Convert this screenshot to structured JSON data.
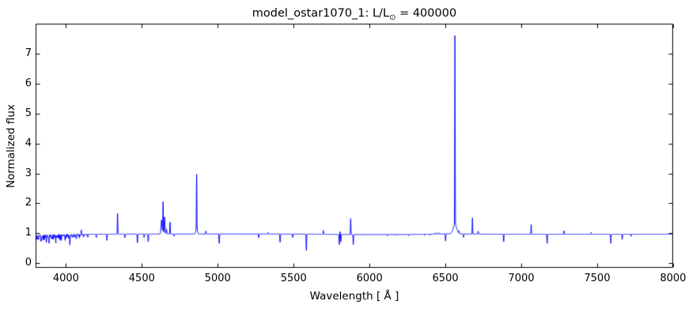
{
  "figure": {
    "title_prefix": "model_ostar1070_1: L/L",
    "title_sub": "⊙",
    "title_suffix": " = 400000",
    "background": "#ffffff",
    "axes_color": "#000000"
  },
  "chart_data": {
    "type": "line",
    "title": "model_ostar1070_1: L/L⊙ = 400000",
    "xlabel": "Wavelength [ Å ]",
    "ylabel": "Normalized flux",
    "xlim": [
      3800,
      8000
    ],
    "ylim": [
      -0.15,
      8.0
    ],
    "xticks": [
      4000,
      4500,
      5000,
      5500,
      6000,
      6500,
      7000,
      7500,
      8000
    ],
    "yticks": [
      0,
      1,
      2,
      3,
      4,
      5,
      6,
      7
    ],
    "grid": false,
    "legend": null,
    "series_color": "#0000ff",
    "continuum_level": 1.0,
    "baseline_points": [
      [
        3800,
        0.93
      ],
      [
        3900,
        0.945
      ],
      [
        3990,
        0.955
      ],
      [
        4120,
        0.97
      ],
      [
        4400,
        0.975
      ],
      [
        5000,
        0.98
      ],
      [
        5600,
        0.975
      ],
      [
        5900,
        0.96
      ],
      [
        6300,
        0.965
      ],
      [
        6520,
        0.985
      ],
      [
        6700,
        0.975
      ],
      [
        7200,
        0.97
      ],
      [
        8000,
        0.97
      ]
    ],
    "noise_region": {
      "range": [
        3800,
        4160
      ],
      "amplitude": 0.12
    },
    "emission_lines": [
      {
        "wavelength": 4101,
        "peak_flux": 1.12,
        "width": 3.0
      },
      {
        "wavelength": 4340,
        "peak_flux": 1.68,
        "width": 3.5
      },
      {
        "wavelength": 4630,
        "peak_flux": 1.45,
        "width": 8.0
      },
      {
        "wavelength": 4640,
        "peak_flux": 2.05,
        "width": 3.5
      },
      {
        "wavelength": 4650,
        "peak_flux": 1.55,
        "width": 6.0
      },
      {
        "wavelength": 4662,
        "peak_flux": 1.15,
        "width": 5.0
      },
      {
        "wavelength": 4686,
        "peak_flux": 1.38,
        "width": 3.5
      },
      {
        "wavelength": 4861,
        "peak_flux": 2.82,
        "width": 3.5
      },
      {
        "wavelength": 4861,
        "peak_flux": 1.15,
        "width": 12.0
      },
      {
        "wavelength": 4922,
        "peak_flux": 1.08,
        "width": 3.0
      },
      {
        "wavelength": 5330,
        "peak_flux": 1.03,
        "width": 4.0
      },
      {
        "wavelength": 5696,
        "peak_flux": 1.1,
        "width": 4.0
      },
      {
        "wavelength": 5806,
        "peak_flux": 1.06,
        "width": 3.0
      },
      {
        "wavelength": 5876,
        "peak_flux": 1.5,
        "width": 3.5
      },
      {
        "wavelength": 6435,
        "peak_flux": 1.02,
        "width": 4.0
      },
      {
        "wavelength": 6455,
        "peak_flux": 1.02,
        "width": 4.0
      },
      {
        "wavelength": 6563,
        "peak_flux": 7.3,
        "width": 3.2
      },
      {
        "wavelength": 6563,
        "peak_flux": 1.3,
        "width": 26.0
      },
      {
        "wavelength": 6590,
        "peak_flux": 1.08,
        "width": 4.0
      },
      {
        "wavelength": 6678,
        "peak_flux": 1.53,
        "width": 3.2
      },
      {
        "wavelength": 6716,
        "peak_flux": 1.07,
        "width": 5.0
      },
      {
        "wavelength": 7065,
        "peak_flux": 1.3,
        "width": 3.5
      },
      {
        "wavelength": 7281,
        "peak_flux": 1.09,
        "width": 3.5
      },
      {
        "wavelength": 7460,
        "peak_flux": 1.03,
        "width": 4.0
      }
    ],
    "absorption_lines": [
      {
        "wavelength": 3819,
        "min_flux": 0.8,
        "width": 3.0
      },
      {
        "wavelength": 3835,
        "min_flux": 0.76,
        "width": 3.0
      },
      {
        "wavelength": 3856,
        "min_flux": 0.88,
        "width": 3.0
      },
      {
        "wavelength": 3871,
        "min_flux": 0.84,
        "width": 3.0
      },
      {
        "wavelength": 3889,
        "min_flux": 0.78,
        "width": 3.0
      },
      {
        "wavelength": 3926,
        "min_flux": 0.86,
        "width": 3.0
      },
      {
        "wavelength": 3934,
        "min_flux": 0.82,
        "width": 3.0
      },
      {
        "wavelength": 3964,
        "min_flux": 0.8,
        "width": 3.0
      },
      {
        "wavelength": 3970,
        "min_flux": 0.79,
        "width": 3.0
      },
      {
        "wavelength": 3995,
        "min_flux": 0.88,
        "width": 3.0
      },
      {
        "wavelength": 4026,
        "min_flux": 0.7,
        "width": 3.5
      },
      {
        "wavelength": 4069,
        "min_flux": 0.88,
        "width": 3.0
      },
      {
        "wavelength": 4089,
        "min_flux": 0.86,
        "width": 3.0
      },
      {
        "wavelength": 4116,
        "min_flux": 0.87,
        "width": 3.0
      },
      {
        "wavelength": 4144,
        "min_flux": 0.87,
        "width": 3.0
      },
      {
        "wavelength": 4200,
        "min_flux": 0.86,
        "width": 3.5
      },
      {
        "wavelength": 4270,
        "min_flux": 0.76,
        "width": 3.5
      },
      {
        "wavelength": 4388,
        "min_flux": 0.85,
        "width": 3.5
      },
      {
        "wavelength": 4471,
        "min_flux": 0.68,
        "width": 4.0
      },
      {
        "wavelength": 4515,
        "min_flux": 0.86,
        "width": 3.5
      },
      {
        "wavelength": 4542,
        "min_flux": 0.72,
        "width": 4.0
      },
      {
        "wavelength": 4713,
        "min_flux": 0.9,
        "width": 3.5
      },
      {
        "wavelength": 5010,
        "min_flux": 0.66,
        "width": 4.0
      },
      {
        "wavelength": 5270,
        "min_flux": 0.85,
        "width": 3.5
      },
      {
        "wavelength": 5411,
        "min_flux": 0.7,
        "width": 4.0
      },
      {
        "wavelength": 5494,
        "min_flux": 0.86,
        "width": 3.5
      },
      {
        "wavelength": 5584,
        "min_flux": 0.42,
        "width": 4.0
      },
      {
        "wavelength": 5801,
        "min_flux": 0.62,
        "width": 3.5
      },
      {
        "wavelength": 5812,
        "min_flux": 0.72,
        "width": 3.5
      },
      {
        "wavelength": 5893,
        "min_flux": 0.63,
        "width": 3.5
      },
      {
        "wavelength": 6119,
        "min_flux": 0.92,
        "width": 3.0
      },
      {
        "wavelength": 6180,
        "min_flux": 0.93,
        "width": 3.0
      },
      {
        "wavelength": 6258,
        "min_flux": 0.92,
        "width": 3.0
      },
      {
        "wavelength": 6363,
        "min_flux": 0.93,
        "width": 3.0
      },
      {
        "wavelength": 6398,
        "min_flux": 0.93,
        "width": 3.0
      },
      {
        "wavelength": 6501,
        "min_flux": 0.74,
        "width": 3.5
      },
      {
        "wavelength": 6620,
        "min_flux": 0.86,
        "width": 3.5
      },
      {
        "wavelength": 6884,
        "min_flux": 0.72,
        "width": 3.5
      },
      {
        "wavelength": 7170,
        "min_flux": 0.66,
        "width": 3.5
      },
      {
        "wavelength": 7590,
        "min_flux": 0.66,
        "width": 3.5
      },
      {
        "wavelength": 7665,
        "min_flux": 0.8,
        "width": 3.5
      },
      {
        "wavelength": 7724,
        "min_flux": 0.9,
        "width": 3.0
      }
    ]
  }
}
